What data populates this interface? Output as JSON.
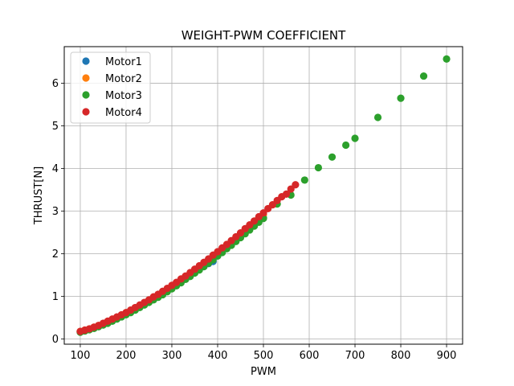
{
  "chart_data": {
    "type": "scatter",
    "title": "WEIGHT-PWM COEFFICIENT",
    "xlabel": "PWM",
    "ylabel": "THRUST[N]",
    "xlim": [
      65,
      935
    ],
    "ylim": [
      -0.12,
      6.86
    ],
    "xticks": [
      100,
      200,
      300,
      400,
      500,
      600,
      700,
      800,
      900
    ],
    "yticks": [
      0,
      1,
      2,
      3,
      4,
      5,
      6
    ],
    "grid": true,
    "legend_position": "top-left",
    "series": [
      {
        "name": "Motor1",
        "color": "#1f77b4",
        "x": [
          100,
          110,
          120,
          130,
          140,
          150,
          160,
          170,
          180,
          190,
          200,
          210,
          220,
          230,
          240,
          250,
          260,
          270,
          280,
          290,
          300,
          310,
          320,
          330,
          340,
          350,
          360,
          370,
          380,
          390,
          400,
          410,
          420,
          430,
          440,
          450,
          460,
          470,
          480,
          490,
          500
        ],
        "y": [
          0.17,
          0.2,
          0.23,
          0.27,
          0.31,
          0.35,
          0.4,
          0.45,
          0.5,
          0.55,
          0.6,
          0.65,
          0.71,
          0.77,
          0.83,
          0.89,
          0.95,
          1.01,
          1.07,
          1.14,
          1.21,
          1.28,
          1.35,
          1.42,
          1.49,
          1.56,
          1.63,
          1.7,
          1.77,
          1.82,
          1.95,
          2.05,
          2.15,
          2.25,
          2.35,
          2.45,
          2.55,
          2.62,
          2.7,
          2.78,
          2.85
        ]
      },
      {
        "name": "Motor2",
        "color": "#ff7f0e",
        "x": [
          100,
          110,
          120,
          130,
          140,
          150,
          160,
          170,
          180,
          190,
          200,
          210,
          220,
          230,
          240,
          250,
          260,
          270,
          280,
          290,
          300,
          310,
          320,
          330,
          340,
          350,
          360,
          370,
          380,
          390,
          400,
          410,
          420,
          430,
          440,
          450,
          460,
          470,
          480,
          490,
          500
        ],
        "y": [
          0.18,
          0.21,
          0.24,
          0.28,
          0.32,
          0.36,
          0.41,
          0.46,
          0.51,
          0.56,
          0.62,
          0.67,
          0.73,
          0.79,
          0.85,
          0.91,
          0.98,
          1.04,
          1.11,
          1.18,
          1.25,
          1.32,
          1.4,
          1.47,
          1.55,
          1.62,
          1.7,
          1.78,
          1.86,
          1.95,
          2.04,
          2.13,
          2.22,
          2.3,
          2.39,
          2.48,
          2.57,
          2.66,
          2.75,
          2.84,
          2.92
        ]
      },
      {
        "name": "Motor3",
        "color": "#2ca02c",
        "x": [
          100,
          110,
          120,
          130,
          140,
          150,
          160,
          170,
          180,
          190,
          200,
          210,
          220,
          230,
          240,
          250,
          260,
          270,
          280,
          290,
          300,
          310,
          320,
          330,
          340,
          350,
          360,
          370,
          380,
          390,
          400,
          410,
          420,
          430,
          440,
          450,
          460,
          470,
          480,
          490,
          500,
          530,
          560,
          590,
          620,
          650,
          680,
          700,
          750,
          800,
          850,
          900
        ],
        "y": [
          0.16,
          0.19,
          0.22,
          0.25,
          0.29,
          0.33,
          0.37,
          0.42,
          0.47,
          0.52,
          0.57,
          0.62,
          0.68,
          0.74,
          0.8,
          0.86,
          0.92,
          0.98,
          1.04,
          1.11,
          1.18,
          1.25,
          1.32,
          1.4,
          1.47,
          1.55,
          1.62,
          1.7,
          1.78,
          1.86,
          1.95,
          2.03,
          2.12,
          2.2,
          2.29,
          2.38,
          2.47,
          2.56,
          2.65,
          2.74,
          2.83,
          3.17,
          3.38,
          3.73,
          4.02,
          4.27,
          4.55,
          4.71,
          5.2,
          5.65,
          6.17,
          6.57
        ]
      },
      {
        "name": "Motor4",
        "color": "#d62728",
        "x": [
          100,
          110,
          120,
          130,
          140,
          150,
          160,
          170,
          180,
          190,
          200,
          210,
          220,
          230,
          240,
          250,
          260,
          270,
          280,
          290,
          300,
          310,
          320,
          330,
          340,
          350,
          360,
          370,
          380,
          390,
          400,
          410,
          420,
          430,
          440,
          450,
          460,
          470,
          480,
          490,
          500,
          510,
          520,
          530,
          540,
          550,
          560,
          570
        ],
        "y": [
          0.18,
          0.21,
          0.24,
          0.28,
          0.32,
          0.37,
          0.42,
          0.47,
          0.52,
          0.57,
          0.62,
          0.68,
          0.74,
          0.8,
          0.86,
          0.92,
          0.99,
          1.05,
          1.12,
          1.19,
          1.26,
          1.33,
          1.41,
          1.48,
          1.56,
          1.64,
          1.72,
          1.8,
          1.88,
          1.97,
          2.05,
          2.14,
          2.22,
          2.31,
          2.4,
          2.49,
          2.59,
          2.68,
          2.77,
          2.87,
          2.96,
          3.06,
          3.15,
          3.25,
          3.34,
          3.4,
          3.52,
          3.62
        ]
      }
    ]
  }
}
